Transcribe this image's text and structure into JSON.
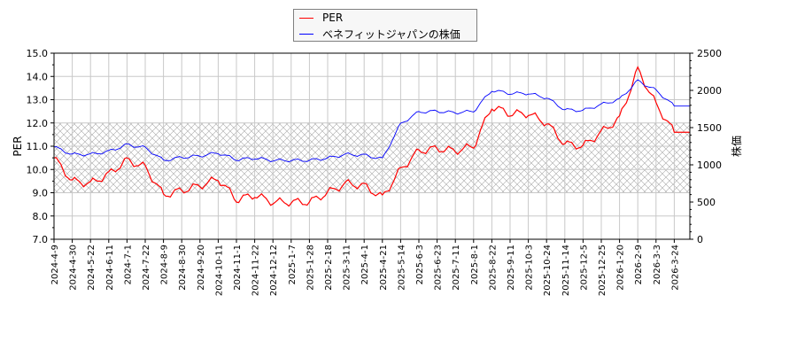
{
  "legend": {
    "items": [
      {
        "label": "PER",
        "color": "#ff0000"
      },
      {
        "label": "ベネフィットジャパンの株価",
        "color": "#0000ff"
      }
    ]
  },
  "axes": {
    "left_label": "PER",
    "right_label": "株価",
    "left_ticks": [
      "7.0",
      "8.0",
      "9.0",
      "10.0",
      "11.0",
      "12.0",
      "13.0",
      "14.0",
      "15.0"
    ],
    "right_ticks": [
      "0",
      "500",
      "1000",
      "1500",
      "2000",
      "2500"
    ],
    "x_ticks": [
      "2024-4-9",
      "2024-4-30",
      "2024-5-22",
      "2024-6-11",
      "2024-7-1",
      "2024-7-22",
      "2024-8-9",
      "2024-8-30",
      "2024-9-20",
      "2024-10-11",
      "2024-11-1",
      "2024-11-22",
      "2024-12-12",
      "2025-1-7",
      "2025-1-28",
      "2025-2-18",
      "2025-3-11",
      "2025-4-1",
      "2025-4-21",
      "2025-5-14",
      "2025-6-3",
      "2025-6-23",
      "2025-7-11",
      "2025-8-1",
      "2025-8-22",
      "2025-9-11",
      "2025-10-3",
      "2025-10-24",
      "2025-11-14",
      "2025-12-5",
      "2025-12-25",
      "2026-1-20",
      "2026-2-9",
      "2026-3-3",
      "2026-3-24"
    ]
  },
  "chart_data": {
    "type": "line",
    "title": "",
    "xlabel": "",
    "ylabel": "PER",
    "y2label": "株価",
    "ylim": [
      7.0,
      15.0
    ],
    "y2lim": [
      0,
      2500
    ],
    "grid": true,
    "legend_position": "top-center",
    "shaded_band": {
      "axis": "PER",
      "from": 9.0,
      "to": 12.0,
      "pattern": "crosshatch"
    },
    "x": [
      "2024-4-9",
      "2024-4-30",
      "2024-5-22",
      "2024-6-11",
      "2024-7-1",
      "2024-7-22",
      "2024-8-9",
      "2024-8-30",
      "2024-9-20",
      "2024-10-11",
      "2024-11-1",
      "2024-11-22",
      "2024-12-12",
      "2025-1-7",
      "2025-1-28",
      "2025-2-18",
      "2025-3-11",
      "2025-4-1",
      "2025-4-21",
      "2025-5-14",
      "2025-6-3",
      "2025-6-23",
      "2025-7-11",
      "2025-8-1",
      "2025-8-22",
      "2025-9-11",
      "2025-10-3",
      "2025-10-24",
      "2025-11-14",
      "2025-12-5",
      "2025-12-25",
      "2026-1-20",
      "2026-2-9",
      "2026-3-3",
      "2026-3-24"
    ],
    "series": [
      {
        "name": "PER",
        "axis": "left",
        "color": "#ff0000",
        "values": [
          10.5,
          9.5,
          9.4,
          9.8,
          10.4,
          10.1,
          8.9,
          9.1,
          9.3,
          9.6,
          8.7,
          8.9,
          8.6,
          8.6,
          8.6,
          9.0,
          9.4,
          9.3,
          8.8,
          10.0,
          10.8,
          10.9,
          10.8,
          11.0,
          12.7,
          12.4,
          12.4,
          12.0,
          11.1,
          11.0,
          11.6,
          12.2,
          14.3,
          12.8,
          11.6
        ]
      },
      {
        "name": "ベネフィットジャパンの株価",
        "axis": "right",
        "color": "#0000ff",
        "values": [
          1240,
          1140,
          1140,
          1180,
          1270,
          1230,
          1060,
          1100,
          1120,
          1160,
          1070,
          1090,
          1060,
          1060,
          1060,
          1090,
          1140,
          1130,
          1080,
          1550,
          1710,
          1720,
          1700,
          1720,
          2000,
          1960,
          1960,
          1900,
          1740,
          1730,
          1810,
          1880,
          2130,
          2000,
          1790
        ]
      }
    ]
  }
}
